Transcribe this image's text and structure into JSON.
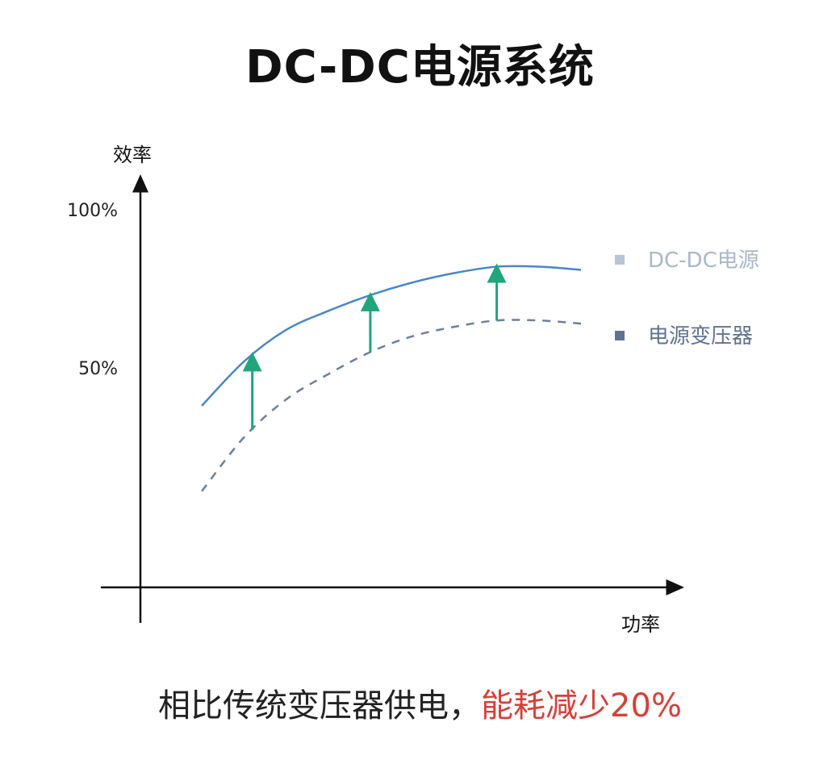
{
  "title": "DC-DC电源系统",
  "chart_data": {
    "type": "line",
    "ylabel": "效率",
    "xlabel": "功率",
    "yticks": [
      "100%",
      "50%"
    ],
    "ytick_values": [
      100,
      50
    ],
    "ylim": [
      0,
      100
    ],
    "grid": false,
    "legend_position": "right",
    "series": [
      {
        "name": "DC-DC电源",
        "style": "solid",
        "color": "#4a86c8",
        "x": [
          1,
          2,
          3,
          4,
          5,
          6,
          7,
          8,
          9,
          10
        ],
        "values": [
          38,
          52,
          62,
          68,
          73,
          77,
          80,
          82,
          82,
          81
        ]
      },
      {
        "name": "电源变压器",
        "style": "dashed",
        "color": "#6b7f9e",
        "x": [
          1,
          2,
          3,
          4,
          5,
          6,
          7,
          8,
          9,
          10
        ],
        "values": [
          11,
          28,
          40,
          48,
          55,
          60,
          63,
          65,
          65,
          64
        ]
      }
    ],
    "improvement_arrows_x": [
      2.2,
      5.0,
      8.0
    ],
    "arrow_color": "#1fa67a",
    "legend_colors": [
      "#b6c4d6",
      "#5f7391"
    ]
  },
  "caption": {
    "prefix": "相比传统变压器供电，",
    "highlight": "能耗减少20%"
  }
}
